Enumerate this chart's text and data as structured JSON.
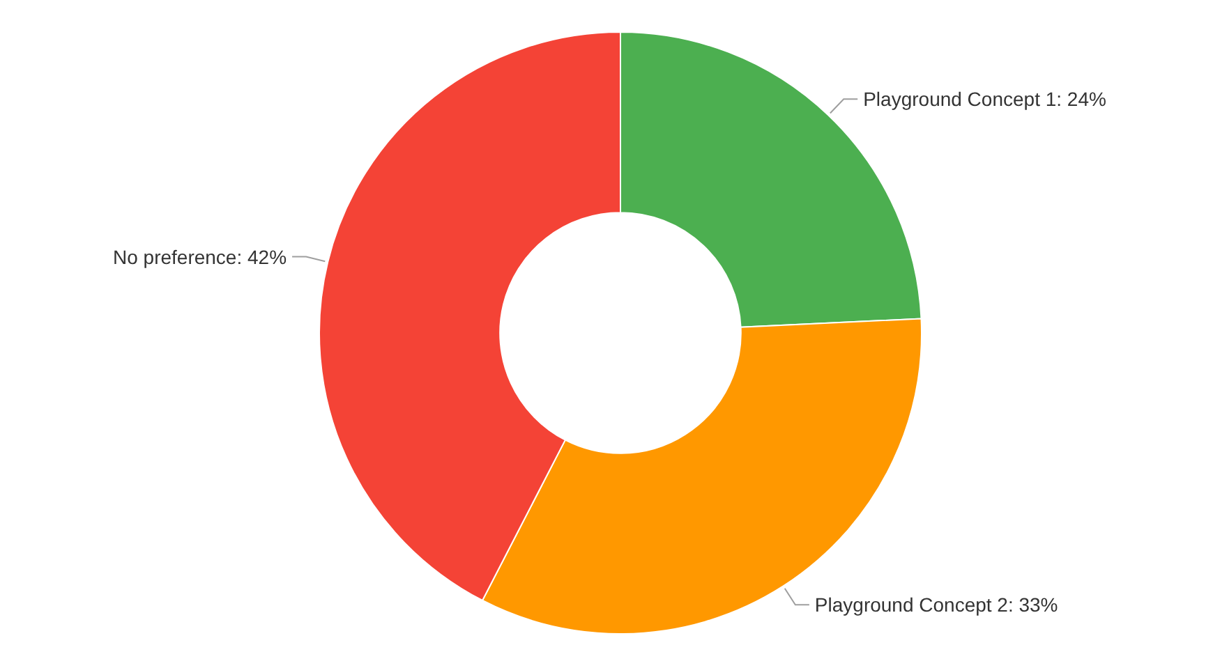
{
  "chart_data": {
    "type": "donut",
    "categories": [
      "Playground Concept 1",
      "Playground Concept 2",
      "No preference"
    ],
    "values": [
      24,
      33,
      42
    ],
    "value_labels": [
      "24%",
      "33%",
      "42%"
    ],
    "colors": [
      "#4caf50",
      "#ff9800",
      "#f44336"
    ],
    "legend": false
  }
}
